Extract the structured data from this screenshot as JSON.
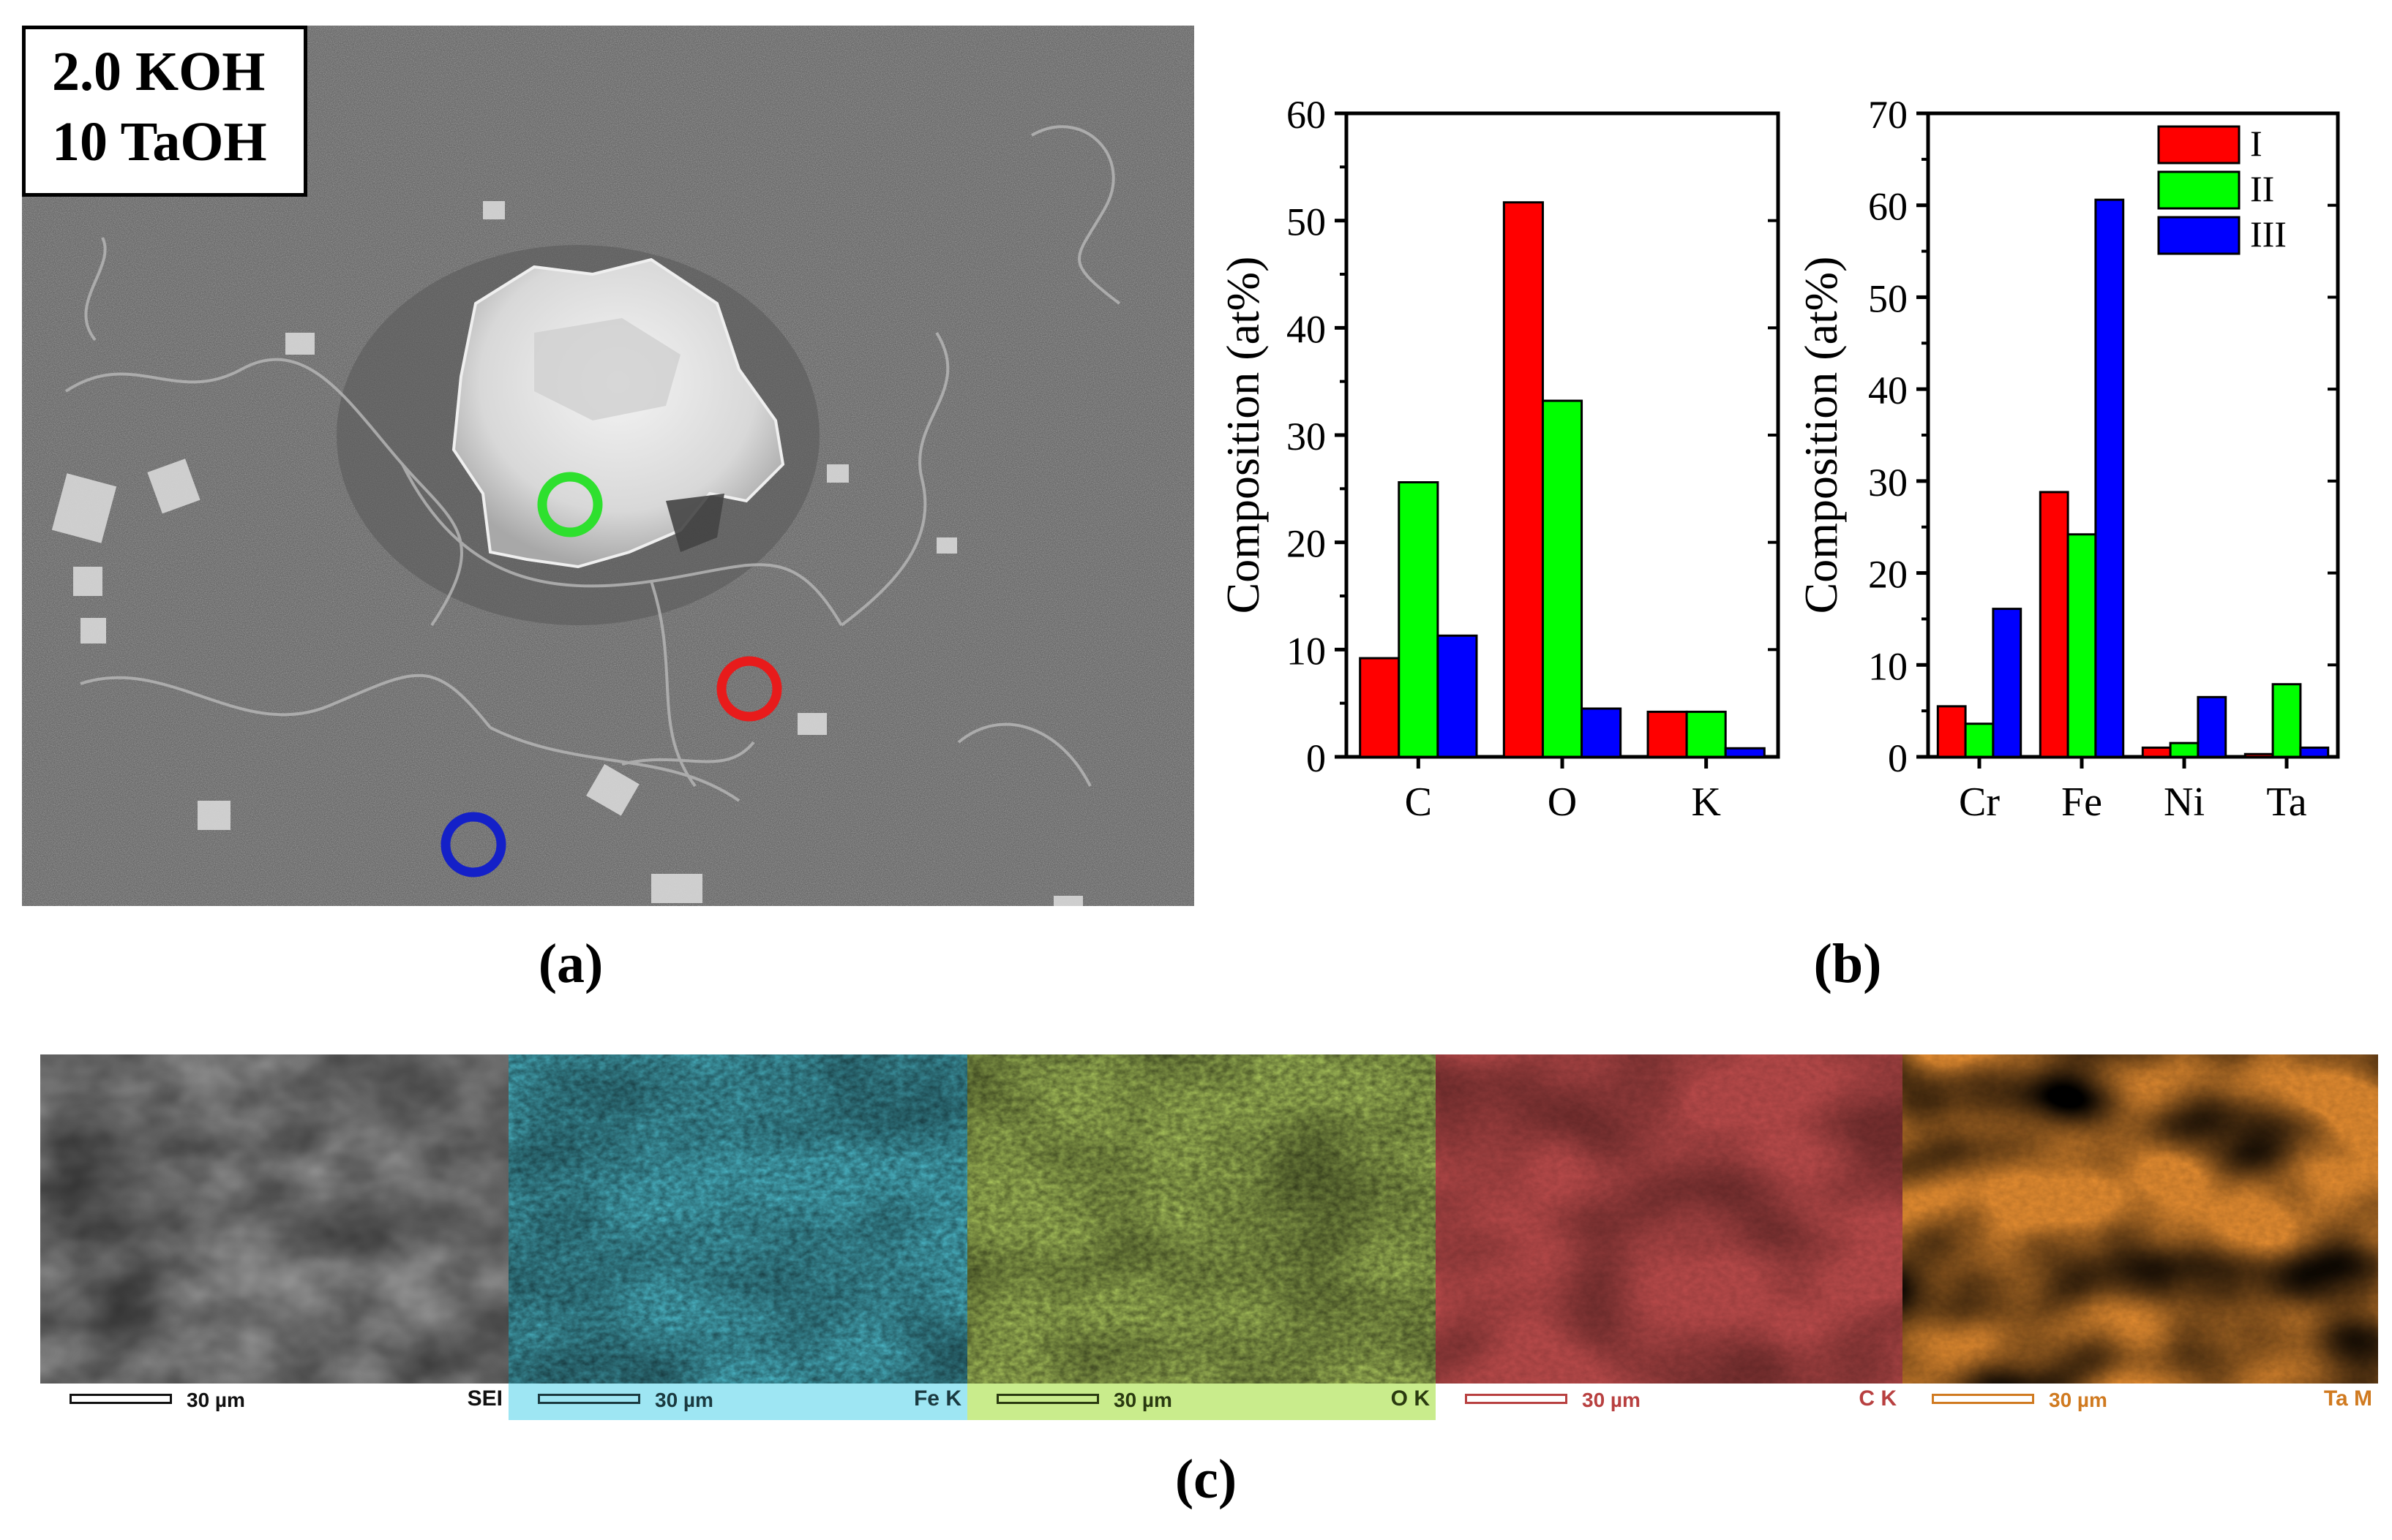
{
  "panel_a": {
    "label_line1": "2.0 KOH",
    "label_line2": "10 TaOH",
    "caption": "(a)",
    "markers": [
      {
        "name": "I",
        "color": "#e81b1b"
      },
      {
        "name": "II",
        "color": "#2ee02e"
      },
      {
        "name": "III",
        "color": "#1420c8"
      }
    ]
  },
  "panel_b": {
    "caption": "(b)"
  },
  "panel_c": {
    "caption": "(c)",
    "maps": [
      {
        "element": "SEI",
        "scale": "30 µm",
        "strip_color": "#ffffff",
        "text_color": "#111111",
        "tint": "#9a9a9a"
      },
      {
        "element": "Fe K",
        "scale": "30 µm",
        "strip_color": "#9ee6f3",
        "text_color": "#1a3a40",
        "tint": "#4ab4c4"
      },
      {
        "element": "O K",
        "scale": "30 µm",
        "strip_color": "#c9ec8c",
        "text_color": "#2a3a10",
        "tint": "#a6c05a"
      },
      {
        "element": "C K",
        "scale": "30 µm",
        "strip_color": "#ffffff",
        "text_color": "#b84040",
        "tint": "#b84a4a"
      },
      {
        "element": "Ta M",
        "scale": "30 µm",
        "strip_color": "#ffffff",
        "text_color": "#d07a20",
        "tint": "#e08a30"
      }
    ]
  },
  "chart_data": [
    {
      "type": "bar",
      "categories": [
        "C",
        "O",
        "K"
      ],
      "series": [
        {
          "name": "I",
          "color": "#ff0000",
          "values": [
            9.2,
            51.7,
            4.2
          ]
        },
        {
          "name": "II",
          "color": "#00ff00",
          "values": [
            25.6,
            33.2,
            4.2
          ]
        },
        {
          "name": "III",
          "color": "#0000ff",
          "values": [
            11.3,
            4.5,
            0.8
          ]
        }
      ],
      "ylabel": "Composition (at%)",
      "ylim": [
        0,
        60
      ],
      "yticks": [
        0,
        10,
        20,
        30,
        40,
        50,
        60
      ],
      "legend": "none"
    },
    {
      "type": "bar",
      "categories": [
        "Cr",
        "Fe",
        "Ni",
        "Ta"
      ],
      "series": [
        {
          "name": "I",
          "color": "#ff0000",
          "values": [
            5.5,
            28.8,
            1.0,
            0.3
          ]
        },
        {
          "name": "II",
          "color": "#00ff00",
          "values": [
            3.6,
            24.2,
            1.5,
            7.9
          ]
        },
        {
          "name": "III",
          "color": "#0000ff",
          "values": [
            16.1,
            60.6,
            6.5,
            1.0
          ]
        }
      ],
      "ylabel": "Composition (at%)",
      "ylim": [
        0,
        70
      ],
      "yticks": [
        0,
        10,
        20,
        30,
        40,
        50,
        60,
        70
      ],
      "legend": "top-right"
    }
  ]
}
